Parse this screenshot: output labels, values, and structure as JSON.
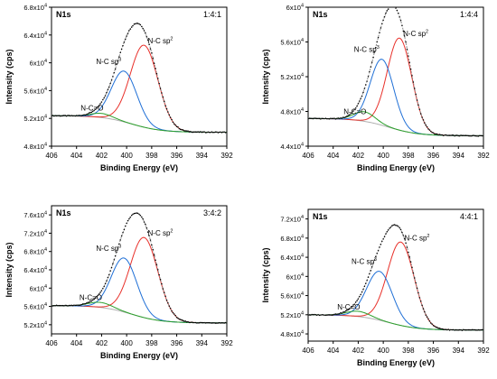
{
  "chart_data": [
    {
      "type": "line",
      "panel_label": "N1s",
      "ratio": "1:4:1",
      "xlabel": "Binding Energy (eV)",
      "ylabel": "Intensity (cps)",
      "xlim": [
        406,
        392
      ],
      "xticks": [
        406,
        404,
        402,
        400,
        398,
        396,
        394,
        392
      ],
      "ylim": [
        48000,
        68000
      ],
      "yticks": [
        48000,
        52000,
        56000,
        60000,
        64000,
        68000
      ],
      "ytick_labels": [
        {
          "mantissa": "4.8x10",
          "exp": "4"
        },
        {
          "mantissa": "5.2x10",
          "exp": "4"
        },
        {
          "mantissa": "5.6x10",
          "exp": "4"
        },
        {
          "mantissa": "6x10",
          "exp": "4"
        },
        {
          "mantissa": "6.4x10",
          "exp": "4"
        },
        {
          "mantissa": "6.8x10",
          "exp": "4"
        }
      ],
      "background": {
        "low_be_level": 50000,
        "high_be_level": 52400,
        "center": 399.6,
        "width": 1.2
      },
      "peaks": [
        {
          "label": "N-C sp",
          "label_sup": "2",
          "center": 398.6,
          "height": 11800,
          "fwhm": 2.6,
          "color": "#e8302a"
        },
        {
          "label": "N-C sp",
          "label_sup": "3",
          "center": 400.2,
          "height": 7300,
          "fwhm": 2.4,
          "color": "#1f6fd6"
        },
        {
          "label": "N-C=O",
          "label_sup": "",
          "center": 402.0,
          "height": 600,
          "fwhm": 2.0,
          "color": "#2ca02c"
        }
      ],
      "series": [
        {
          "name": "experimental",
          "style": "dots",
          "color": "#000000"
        },
        {
          "name": "envelope",
          "style": "dotted-line",
          "color": "#888888"
        },
        {
          "name": "background",
          "style": "line",
          "color": "#b0b0b0"
        }
      ]
    },
    {
      "type": "line",
      "panel_label": "N1s",
      "ratio": "1:4:4",
      "xlabel": "Binding Energy (eV)",
      "ylabel": "Intensity (cps)",
      "xlim": [
        406,
        392
      ],
      "xticks": [
        406,
        404,
        402,
        400,
        398,
        396,
        394,
        392
      ],
      "ylim": [
        44000,
        60000
      ],
      "yticks": [
        44000,
        48000,
        52000,
        56000,
        60000
      ],
      "ytick_labels": [
        {
          "mantissa": "4.4x10",
          "exp": "4"
        },
        {
          "mantissa": "4.8x10",
          "exp": "4"
        },
        {
          "mantissa": "5.2x10",
          "exp": "4"
        },
        {
          "mantissa": "5.6x10",
          "exp": "4"
        },
        {
          "mantissa": "6x10",
          "exp": "4"
        }
      ],
      "background": {
        "low_be_level": 45200,
        "high_be_level": 47200,
        "center": 399.6,
        "width": 1.2
      },
      "peaks": [
        {
          "label": "N-C sp",
          "label_sup": "2",
          "center": 398.7,
          "height": 10600,
          "fwhm": 2.3,
          "color": "#e8302a"
        },
        {
          "label": "N-C sp",
          "label_sup": "3",
          "center": 400.1,
          "height": 7600,
          "fwhm": 2.2,
          "color": "#1f6fd6"
        },
        {
          "label": "N-C=O",
          "label_sup": "",
          "center": 401.5,
          "height": 1100,
          "fwhm": 2.0,
          "color": "#2ca02c"
        }
      ],
      "series": [
        {
          "name": "experimental",
          "style": "dots",
          "color": "#000000"
        },
        {
          "name": "envelope",
          "style": "dotted-line",
          "color": "#888888"
        },
        {
          "name": "background",
          "style": "line",
          "color": "#b0b0b0"
        }
      ]
    },
    {
      "type": "line",
      "panel_label": "N1s",
      "ratio": "3:4:2",
      "xlabel": "Binding Energy (eV)",
      "ylabel": "Intensity (cps)",
      "xlim": [
        406,
        392
      ],
      "xticks": [
        406,
        404,
        402,
        400,
        398,
        396,
        394,
        392
      ],
      "ylim": [
        50000,
        78000
      ],
      "yticks": [
        52000,
        56000,
        60000,
        64000,
        68000,
        72000,
        76000
      ],
      "ytick_labels": [
        {
          "mantissa": "5.2x10",
          "exp": "4"
        },
        {
          "mantissa": "5.6x10",
          "exp": "4"
        },
        {
          "mantissa": "6x10",
          "exp": "4"
        },
        {
          "mantissa": "6.4x10",
          "exp": "4"
        },
        {
          "mantissa": "6.8x10",
          "exp": "4"
        },
        {
          "mantissa": "7.2x10",
          "exp": "4"
        },
        {
          "mantissa": "7.6x10",
          "exp": "4"
        }
      ],
      "background": {
        "low_be_level": 52400,
        "high_be_level": 56200,
        "center": 399.6,
        "width": 1.2
      },
      "peaks": [
        {
          "label": "N-C sp",
          "label_sup": "2",
          "center": 398.6,
          "height": 17500,
          "fwhm": 2.6,
          "color": "#e8302a"
        },
        {
          "label": "N-C sp",
          "label_sup": "3",
          "center": 400.2,
          "height": 11800,
          "fwhm": 2.4,
          "color": "#1f6fd6"
        },
        {
          "label": "N-C=O",
          "label_sup": "",
          "center": 402.1,
          "height": 1100,
          "fwhm": 2.2,
          "color": "#2ca02c"
        }
      ],
      "series": [
        {
          "name": "experimental",
          "style": "dots",
          "color": "#000000"
        },
        {
          "name": "envelope",
          "style": "dotted-line",
          "color": "#888888"
        },
        {
          "name": "background",
          "style": "line",
          "color": "#b0b0b0"
        }
      ]
    },
    {
      "type": "line",
      "panel_label": "N1s",
      "ratio": "4:4:1",
      "xlabel": "Binding Energy (eV)",
      "ylabel": "Intensity (cps)",
      "xlim": [
        406,
        392
      ],
      "xticks": [
        406,
        404,
        402,
        400,
        398,
        396,
        394,
        392
      ],
      "ylim": [
        46500,
        74000
      ],
      "yticks": [
        48000,
        52000,
        56000,
        60000,
        64000,
        68000,
        72000
      ],
      "ytick_labels": [
        {
          "mantissa": "4.8x10",
          "exp": "4"
        },
        {
          "mantissa": "5.2x10",
          "exp": "4"
        },
        {
          "mantissa": "5.6x10",
          "exp": "4"
        },
        {
          "mantissa": "6x10",
          "exp": "4"
        },
        {
          "mantissa": "6.4x10",
          "exp": "4"
        },
        {
          "mantissa": "6.8x10",
          "exp": "4"
        },
        {
          "mantissa": "7.2x10",
          "exp": "4"
        }
      ],
      "background": {
        "low_be_level": 48800,
        "high_be_level": 52000,
        "center": 399.6,
        "width": 1.2
      },
      "peaks": [
        {
          "label": "N-C sp",
          "label_sup": "2",
          "center": 398.6,
          "height": 17400,
          "fwhm": 2.5,
          "color": "#e8302a"
        },
        {
          "label": "N-C sp",
          "label_sup": "3",
          "center": 400.3,
          "height": 10200,
          "fwhm": 2.4,
          "color": "#1f6fd6"
        },
        {
          "label": "N-C=O",
          "label_sup": "",
          "center": 402.0,
          "height": 1100,
          "fwhm": 2.2,
          "color": "#2ca02c"
        }
      ],
      "series": [
        {
          "name": "experimental",
          "style": "dots",
          "color": "#000000"
        },
        {
          "name": "envelope",
          "style": "dotted-line",
          "color": "#888888"
        },
        {
          "name": "background",
          "style": "line",
          "color": "#b0b0b0"
        }
      ]
    }
  ]
}
